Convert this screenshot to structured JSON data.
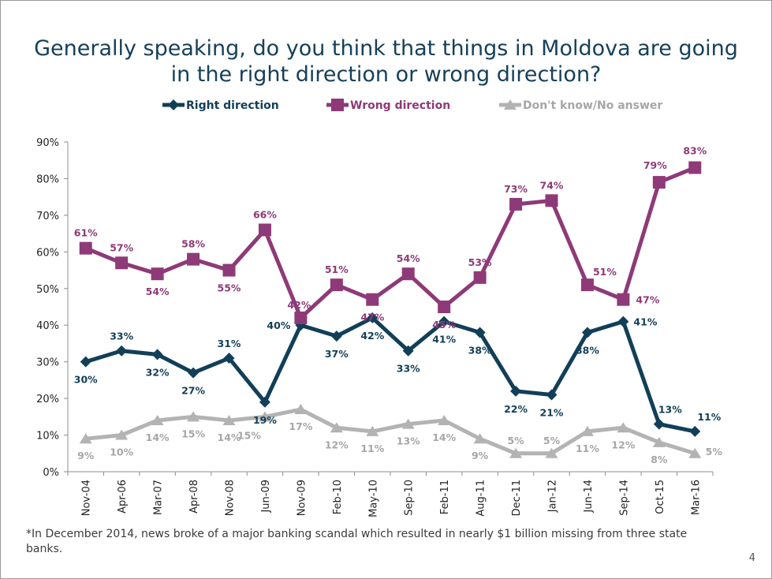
{
  "slide": {
    "title_line1": "Generally speaking, do you think that things in Moldova are going",
    "title_line2": "in the right direction or wrong direction?",
    "footnote": "*In December 2014, news broke of a major banking scandal which resulted in nearly $1 billion missing from three state banks.",
    "page_number": "4"
  },
  "chart_data": {
    "type": "line",
    "title": "Generally speaking, do you think that things in Moldova are going in the right direction or wrong direction?",
    "xlabel": "",
    "ylabel": "",
    "ylim": [
      0,
      90
    ],
    "yticks": [
      "0%",
      "10%",
      "20%",
      "30%",
      "40%",
      "50%",
      "60%",
      "70%",
      "80%",
      "90%"
    ],
    "legend_position": "top",
    "grid": false,
    "categories": [
      "Nov-04",
      "Apr-06",
      "Mar-07",
      "Apr-08",
      "Nov-08",
      "Jun-09",
      "Nov-09",
      "Feb-10",
      "May-10",
      "Sep-10",
      "Feb-11",
      "Aug-11",
      "Dec-11",
      "Jan-12",
      "Jun-14",
      "Sep-14",
      "Oct-15",
      "Mar-16"
    ],
    "series": [
      {
        "name": "Right direction",
        "color": "#123f58",
        "marker": "diamond",
        "values": [
          30,
          33,
          32,
          27,
          31,
          19,
          40,
          37,
          42,
          33,
          41,
          38,
          22,
          21,
          38,
          41,
          13,
          11
        ]
      },
      {
        "name": "Wrong direction",
        "color": "#8e3a78",
        "marker": "square",
        "values": [
          61,
          57,
          54,
          58,
          55,
          66,
          42,
          51,
          47,
          54,
          45,
          53,
          73,
          74,
          51,
          47,
          79,
          83
        ]
      },
      {
        "name": "Don't know/No answer",
        "color": "#b3b3b3",
        "marker": "triangle",
        "values": [
          9,
          10,
          14,
          15,
          14,
          15,
          17,
          12,
          11,
          13,
          14,
          9,
          5,
          5,
          11,
          12,
          8,
          5
        ]
      }
    ]
  }
}
